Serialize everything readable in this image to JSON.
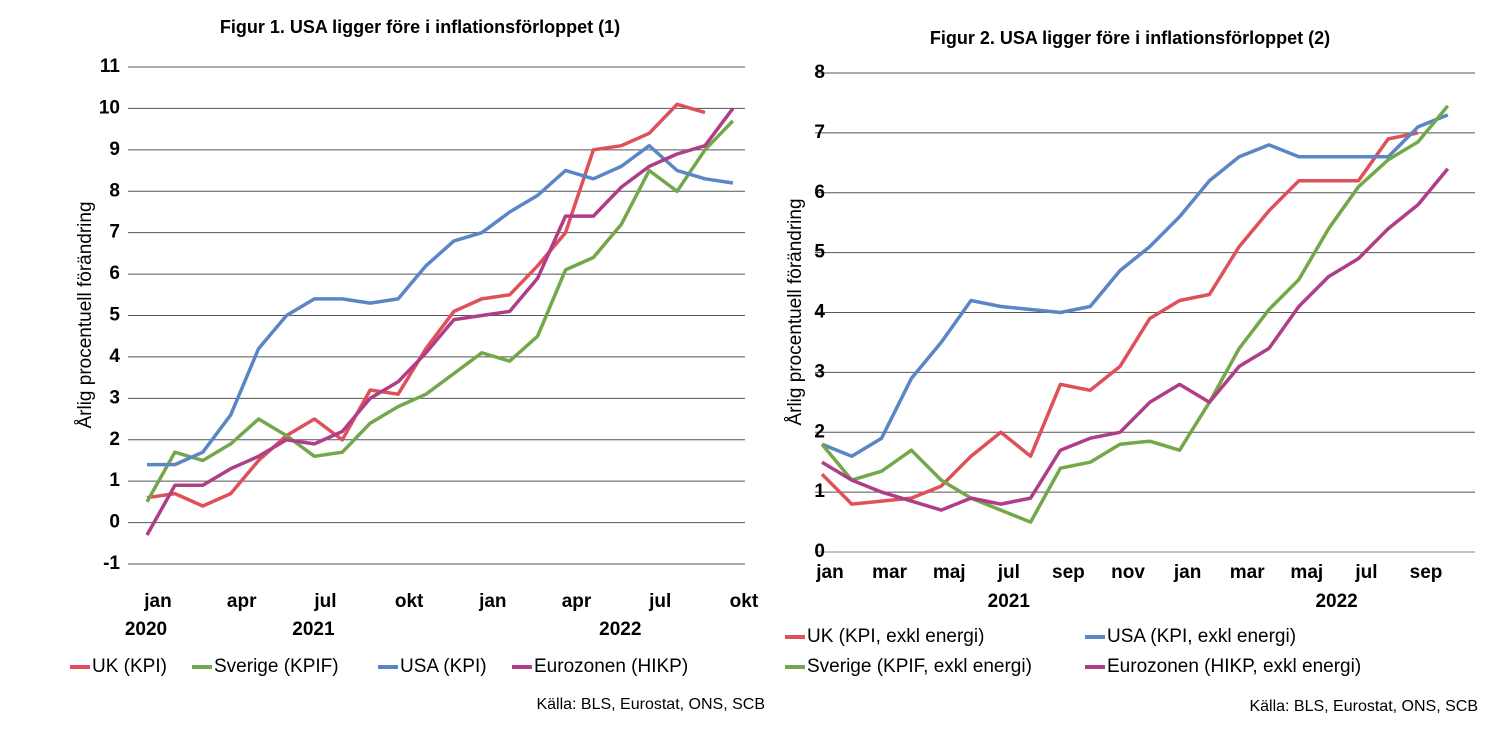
{
  "chart_data": [
    {
      "type": "line",
      "title": "Figur 1. USA ligger före i inflationsförloppet (1)",
      "y_label": "Årlig procentuell förändring",
      "categories": [
        "jan",
        null,
        null,
        "apr",
        null,
        null,
        "jul",
        null,
        null,
        "okt",
        null,
        null,
        "jan",
        null,
        null,
        "apr",
        null,
        null,
        "jul",
        null,
        null,
        "okt"
      ],
      "year_labels": [
        "2020",
        null,
        null,
        null,
        null,
        null,
        "2021",
        null,
        null,
        null,
        null,
        null,
        null,
        null,
        null,
        null,
        null,
        "2022",
        null,
        null,
        null,
        null
      ],
      "ylim": [
        -1,
        11
      ],
      "yticks": [
        -1,
        0,
        1,
        2,
        3,
        4,
        5,
        6,
        7,
        8,
        9,
        10,
        11
      ],
      "grid": true,
      "series": [
        {
          "name": "UK (KPI)",
          "color": "#e0505a",
          "values": [
            0.6,
            0.7,
            0.4,
            0.7,
            1.5,
            2.1,
            2.5,
            2.0,
            3.2,
            3.1,
            4.2,
            5.1,
            5.4,
            5.5,
            6.2,
            7.0,
            9.0,
            9.1,
            9.4,
            10.1,
            9.9,
            null
          ]
        },
        {
          "name": "Sverige (KPIF)",
          "color": "#72a84a",
          "values": [
            0.5,
            1.7,
            1.5,
            1.9,
            2.5,
            2.1,
            1.6,
            1.7,
            2.4,
            2.8,
            3.1,
            3.6,
            4.1,
            3.9,
            4.5,
            6.1,
            6.4,
            7.2,
            8.5,
            8.0,
            9.0,
            9.7
          ]
        },
        {
          "name": "USA (KPI)",
          "color": "#5b86c5",
          "values": [
            1.4,
            1.4,
            1.7,
            2.6,
            4.2,
            5.0,
            5.4,
            5.4,
            5.3,
            5.4,
            6.2,
            6.8,
            7.0,
            7.5,
            7.9,
            8.5,
            8.3,
            8.6,
            9.1,
            8.5,
            8.3,
            8.2
          ]
        },
        {
          "name": "Eurozonen (HIKP)",
          "color": "#b03d87",
          "values": [
            -0.3,
            0.9,
            0.9,
            1.3,
            1.6,
            2.0,
            1.9,
            2.2,
            3.0,
            3.4,
            4.1,
            4.9,
            5.0,
            5.1,
            5.9,
            7.4,
            7.4,
            8.1,
            8.6,
            8.9,
            9.1,
            10.0
          ]
        }
      ],
      "source": "Källa: BLS, Eurostat, ONS, SCB"
    },
    {
      "type": "line",
      "title": "Figur 2. USA ligger före i inflationsförloppet (2)",
      "y_label": "Årlig procentuell förändring",
      "categories": [
        "jan",
        null,
        "mar",
        null,
        "maj",
        null,
        "jul",
        null,
        "sep",
        null,
        "nov",
        null,
        "jan",
        null,
        "mar",
        null,
        "maj",
        null,
        "jul",
        null,
        "sep",
        null
      ],
      "year_labels": [
        null,
        null,
        null,
        null,
        null,
        null,
        "2021",
        null,
        null,
        null,
        null,
        null,
        null,
        null,
        null,
        null,
        null,
        "2022",
        null,
        null,
        null,
        null
      ],
      "ylim": [
        0,
        8
      ],
      "yticks": [
        0,
        1,
        2,
        3,
        4,
        5,
        6,
        7,
        8
      ],
      "grid": true,
      "series": [
        {
          "name": "UK (KPI, exkl energi)",
          "color": "#e0505a",
          "values": [
            1.3,
            0.8,
            0.85,
            0.9,
            1.1,
            1.6,
            2.0,
            1.6,
            2.8,
            2.7,
            3.1,
            3.9,
            4.2,
            4.3,
            5.1,
            5.7,
            6.2,
            6.2,
            6.2,
            6.9,
            7.0,
            null
          ]
        },
        {
          "name": "USA (KPI, exkl energi)",
          "color": "#5b86c5",
          "values": [
            1.8,
            1.6,
            1.9,
            2.9,
            3.5,
            4.2,
            4.1,
            4.05,
            4.0,
            4.1,
            4.7,
            5.1,
            5.6,
            6.2,
            6.6,
            6.8,
            6.6,
            6.6,
            6.6,
            6.6,
            7.1,
            7.3
          ]
        },
        {
          "name": "Sverige (KPIF, exkl energi)",
          "color": "#72a84a",
          "values": [
            1.8,
            1.2,
            1.35,
            1.7,
            1.2,
            0.9,
            0.7,
            0.5,
            1.4,
            1.5,
            1.8,
            1.85,
            1.7,
            2.5,
            3.4,
            4.05,
            4.55,
            5.4,
            6.1,
            6.55,
            6.85,
            7.45
          ]
        },
        {
          "name": "Eurozonen (HIKP, exkl energi)",
          "color": "#b03d87",
          "values": [
            1.5,
            1.2,
            1.0,
            0.85,
            0.7,
            0.9,
            0.8,
            0.9,
            1.7,
            1.9,
            2.0,
            2.5,
            2.8,
            2.5,
            3.1,
            3.4,
            4.1,
            4.6,
            4.9,
            5.4,
            5.8,
            6.4
          ]
        }
      ],
      "source": "Källa: BLS, Eurostat, ONS, SCB"
    }
  ]
}
